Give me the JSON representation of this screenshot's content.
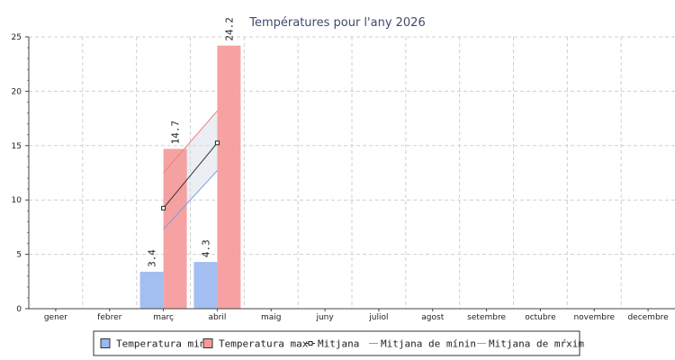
{
  "chart_data": {
    "type": "bar",
    "title": "Températures pour l'any 2026",
    "categories": [
      "gener",
      "febrer",
      "març",
      "abril",
      "maig",
      "juny",
      "juliol",
      "agost",
      "setembre",
      "octubre",
      "novembre",
      "decembre"
    ],
    "ylim": [
      0,
      25
    ],
    "yticks": [
      0,
      5,
      10,
      15,
      20,
      25
    ],
    "grid": true,
    "legend_position": "bottom",
    "series": [
      {
        "name": "Temperatura min",
        "kind": "bar",
        "color": "#99b8f0",
        "values": [
          null,
          null,
          3.4,
          4.3,
          null,
          null,
          null,
          null,
          null,
          null,
          null,
          null
        ]
      },
      {
        "name": "Temperatura max",
        "kind": "bar",
        "color": "#f59898",
        "values": [
          null,
          null,
          14.7,
          24.2,
          null,
          null,
          null,
          null,
          null,
          null,
          null,
          null
        ]
      },
      {
        "name": "Mitjana",
        "kind": "line",
        "color": "#333333",
        "values": [
          null,
          null,
          9.25,
          15.25,
          null,
          null,
          null,
          null,
          null,
          null,
          null,
          null
        ]
      },
      {
        "name": "Mitjana de mínin",
        "kind": "line",
        "color": "#7a9ae6",
        "values": [
          null,
          null,
          7.3,
          12.7,
          null,
          null,
          null,
          null,
          null,
          null,
          null,
          null
        ]
      },
      {
        "name": "Mitjana de mŕxim",
        "kind": "line",
        "color": "#f08080",
        "values": [
          null,
          null,
          12.5,
          18.2,
          null,
          null,
          null,
          null,
          null,
          null,
          null,
          null
        ]
      }
    ]
  }
}
